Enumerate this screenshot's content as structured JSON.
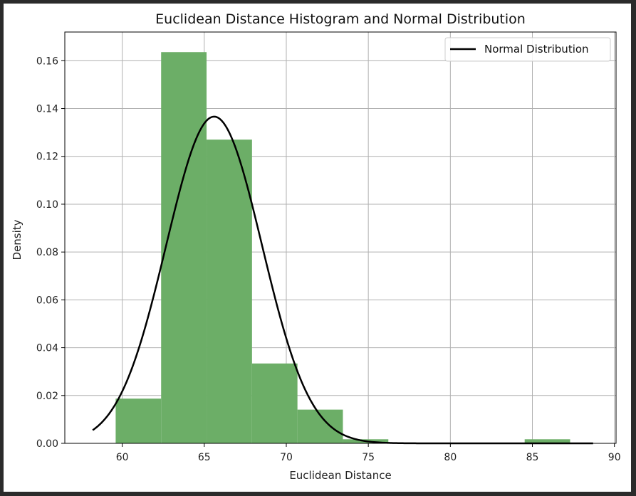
{
  "chart_data": {
    "type": "bar",
    "title": "Euclidean Distance Histogram and Normal Distribution",
    "xlabel": "Euclidean Distance",
    "ylabel": "Density",
    "xlim": [
      56.5,
      90.1
    ],
    "ylim": [
      0,
      0.172
    ],
    "xticks": [
      60,
      65,
      70,
      75,
      80,
      85,
      90
    ],
    "yticks": [
      0.0,
      0.02,
      0.04,
      0.06,
      0.08,
      0.1,
      0.12,
      0.14,
      0.16
    ],
    "grid": true,
    "legend_position": "top-right",
    "histogram": {
      "bin_edges": [
        59.6,
        62.37,
        65.14,
        67.91,
        70.68,
        73.45,
        76.22,
        78.99,
        81.76,
        84.53,
        87.3
      ],
      "density": [
        0.0187,
        0.1636,
        0.127,
        0.0334,
        0.0141,
        0.0017,
        0.0,
        0.0,
        0.0,
        0.0017
      ],
      "color": "#6cae67"
    },
    "series": [
      {
        "name": "Normal Distribution",
        "type": "line",
        "color": "#000000",
        "mean": 65.6,
        "std": 2.92,
        "x_range": [
          58.2,
          88.7
        ]
      }
    ]
  }
}
